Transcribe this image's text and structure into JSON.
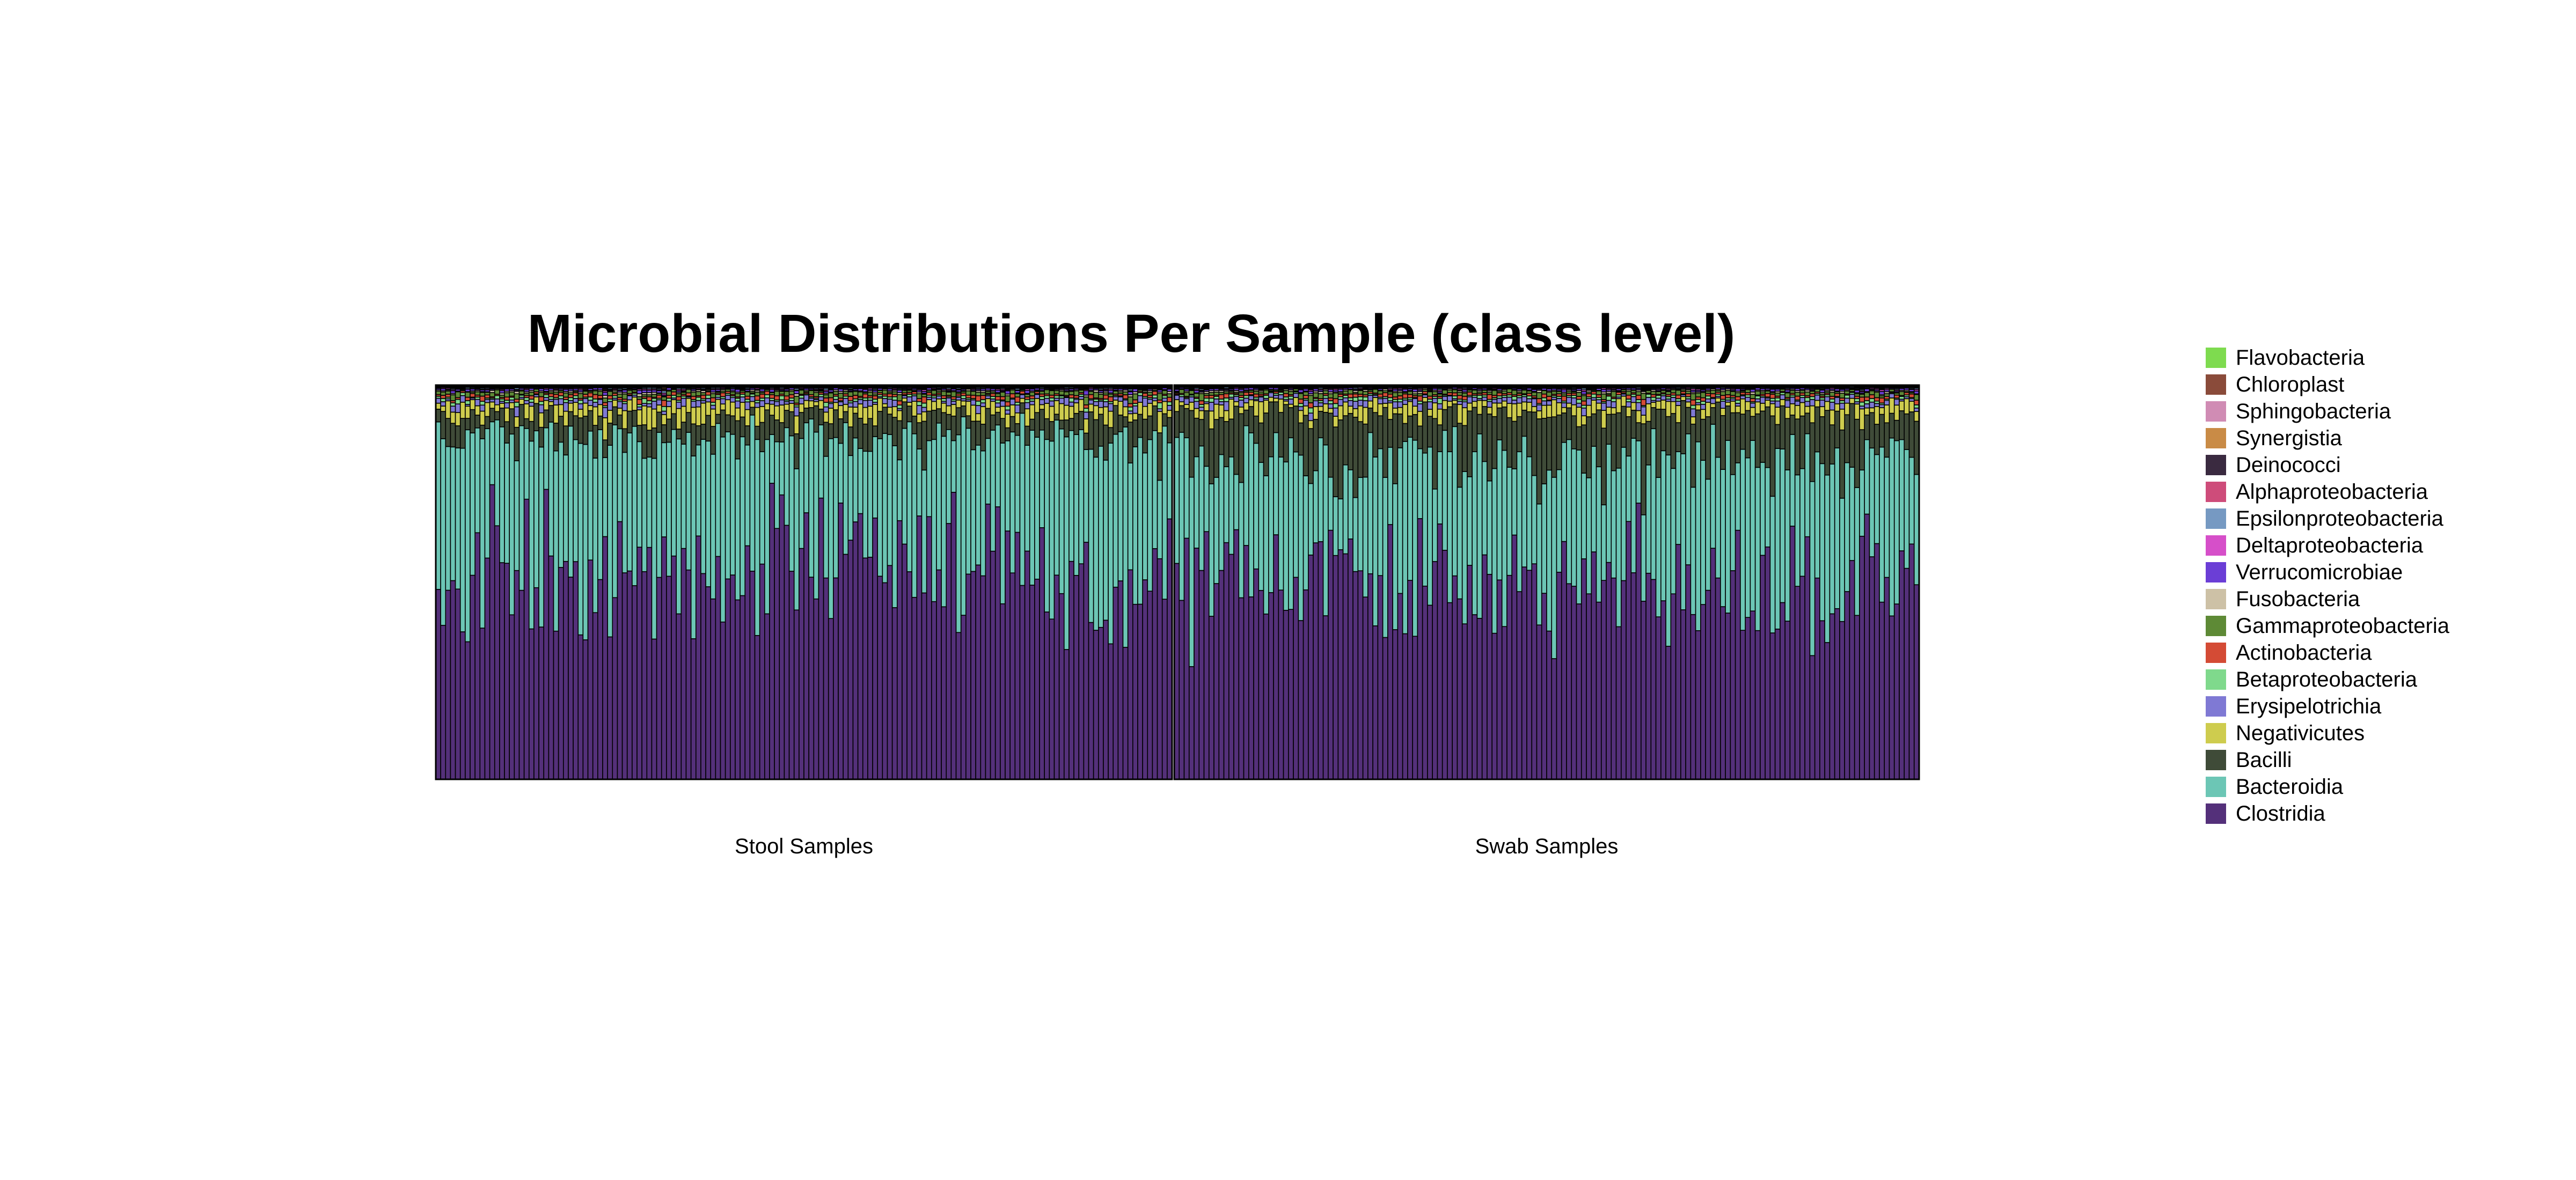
{
  "chart_data": {
    "type": "bar",
    "stacked": true,
    "normalized": true,
    "title": "Microbial Distributions Per Sample (class level)",
    "xlabel": "",
    "ylabel": "",
    "ylim": [
      0,
      1
    ],
    "grid": false,
    "legend_position": "right",
    "groups": [
      {
        "name": "Stool Samples",
        "n_samples": 150
      },
      {
        "name": "Swab Samples",
        "n_samples": 150
      }
    ],
    "series": [
      {
        "name": "Clostridia",
        "color": "#54307A",
        "mean_share": 0.52
      },
      {
        "name": "Bacteroidia",
        "color": "#6CC6B5",
        "mean_share": 0.34
      },
      {
        "name": "Bacilli",
        "color": "#3F4B38",
        "mean_share": 0.055
      },
      {
        "name": "Negativicutes",
        "color": "#CECC4E",
        "mean_share": 0.03
      },
      {
        "name": "Erysipelotrichia",
        "color": "#7F79D4",
        "mean_share": 0.012
      },
      {
        "name": "Betaproteobacteria",
        "color": "#7FD98C",
        "mean_share": 0.006
      },
      {
        "name": "Actinobacteria",
        "color": "#D44B35",
        "mean_share": 0.007
      },
      {
        "name": "Gammaproteobacteria",
        "color": "#5E8A36",
        "mean_share": 0.008
      },
      {
        "name": "Fusobacteria",
        "color": "#CDC1A6",
        "mean_share": 0.003
      },
      {
        "name": "Verrucomicrobiae",
        "color": "#6B3ED6",
        "mean_share": 0.004
      },
      {
        "name": "Deltaproteobacteria",
        "color": "#D64FC9",
        "mean_share": 0.002
      },
      {
        "name": "Epsilonproteobacteria",
        "color": "#7699C2",
        "mean_share": 0.002
      },
      {
        "name": "Alphaproteobacteria",
        "color": "#CE4C7A",
        "mean_share": 0.001
      },
      {
        "name": "Deinococci",
        "color": "#3A2A40",
        "mean_share": 0.001
      },
      {
        "name": "Synergistia",
        "color": "#C98B46",
        "mean_share": 0.001
      },
      {
        "name": "Sphingobacteria",
        "color": "#D08CB4",
        "mean_share": 0.001
      },
      {
        "name": "Chloroplast",
        "color": "#8A4B3A",
        "mean_share": 0.001
      },
      {
        "name": "Flavobacteria",
        "color": "#7EDB4F",
        "mean_share": 0.001
      }
    ]
  }
}
